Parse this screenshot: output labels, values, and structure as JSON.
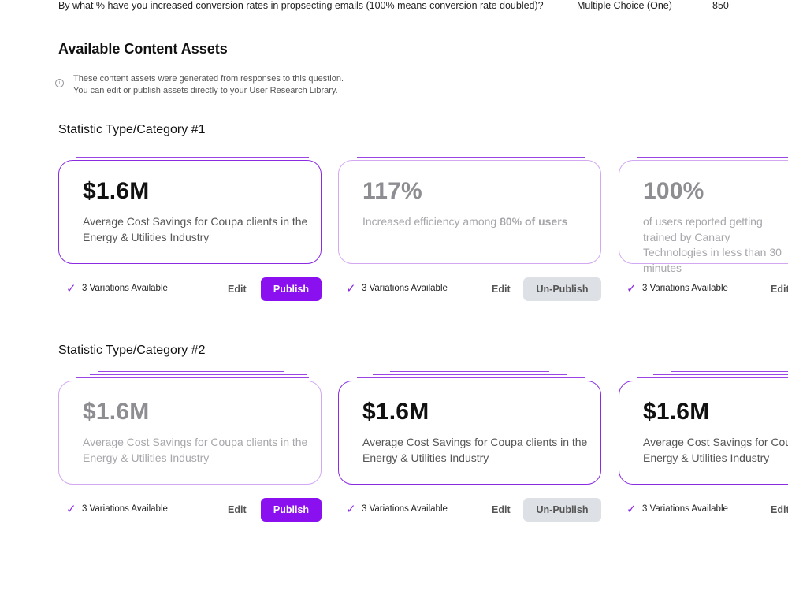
{
  "question": {
    "text": "By what % have you increased conversion rates in propsecting emails (100% means conversion rate doubled)?",
    "type": "Multiple Choice (One)",
    "responses": "850"
  },
  "section": {
    "title": "Available Content Assets",
    "info_line1": "These content assets were generated from responses to this question.",
    "info_line2": "You can edit or publish assets directly to your User Research Library.",
    "info_icon": "info-icon"
  },
  "categories": [
    {
      "title": "Statistic Type/Category #1",
      "cards": [
        {
          "stat": "$1.6M",
          "desc": "Average Cost Savings for Coupa clients in the Energy & Utilities Industry",
          "faded": false,
          "variations": "3 Variations Available",
          "edit": "Edit",
          "action": "Publish"
        },
        {
          "stat": "117%",
          "desc_pre": "Increased efficiency among ",
          "desc_bold": "80% of users",
          "faded": true,
          "variations": "3 Variations Available",
          "edit": "Edit",
          "action": "Un-Publish"
        },
        {
          "stat": "100%",
          "desc": "of users reported getting trained by Canary Technologies in less than 30 minutes",
          "faded": true,
          "variations": "3 Variations Available",
          "edit": "Edit"
        }
      ]
    },
    {
      "title": "Statistic Type/Category #2",
      "cards": [
        {
          "stat": "$1.6M",
          "desc": "Average Cost Savings for Coupa clients in the Energy & Utilities Industry",
          "faded": true,
          "variations": "3 Variations Available",
          "edit": "Edit",
          "action": "Publish"
        },
        {
          "stat": "$1.6M",
          "desc": "Average Cost Savings for Coupa clients in the Energy & Utilities Industry",
          "faded": false,
          "variations": "3 Variations Available",
          "edit": "Edit",
          "action": "Un-Publish"
        },
        {
          "stat": "$1.6M",
          "desc": "Average Cost Savings for Coupa clients in the Energy & Utilities Industry",
          "faded": false,
          "variations": "3 Variations Available",
          "edit": "Edit"
        }
      ]
    }
  ],
  "colors": {
    "accent": "#8a10f0",
    "border": "#8a2be2",
    "unpublish_bg": "#dde1e6"
  }
}
